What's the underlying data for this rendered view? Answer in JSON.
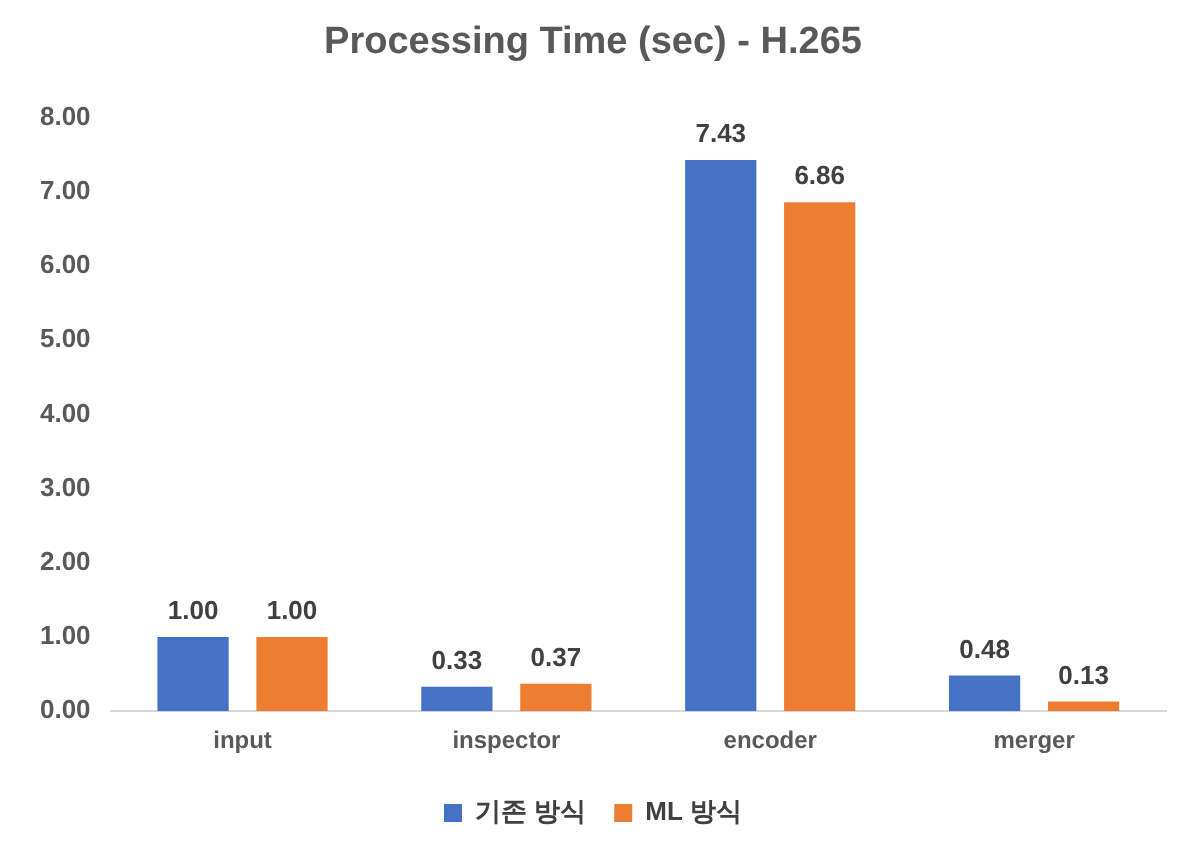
{
  "chart_data": {
    "type": "bar",
    "title": "Processing Time (sec) - H.265",
    "categories": [
      "input",
      "inspector",
      "encoder",
      "merger"
    ],
    "series": [
      {
        "name": "기존 방식",
        "color": "#4472c4",
        "values": [
          1.0,
          0.33,
          7.43,
          0.48
        ]
      },
      {
        "name": "ML 방식",
        "color": "#ed7d31",
        "values": [
          1.0,
          0.37,
          6.86,
          0.13
        ]
      }
    ],
    "ylim": [
      0,
      8
    ],
    "yticks": [
      {
        "value": 0,
        "label": "0.00"
      },
      {
        "value": 1,
        "label": "1.00"
      },
      {
        "value": 2,
        "label": "2.00"
      },
      {
        "value": 3,
        "label": "3.00"
      },
      {
        "value": 4,
        "label": "4.00"
      },
      {
        "value": 5,
        "label": "5.00"
      },
      {
        "value": 6,
        "label": "6.00"
      },
      {
        "value": 7,
        "label": "7.00"
      },
      {
        "value": 8,
        "label": "8.00"
      }
    ],
    "value_labels": [
      [
        "1.00",
        "0.33",
        "7.43",
        "0.48"
      ],
      [
        "1.00",
        "0.37",
        "6.86",
        "0.13"
      ]
    ],
    "grid": false,
    "legend": "bottom"
  }
}
